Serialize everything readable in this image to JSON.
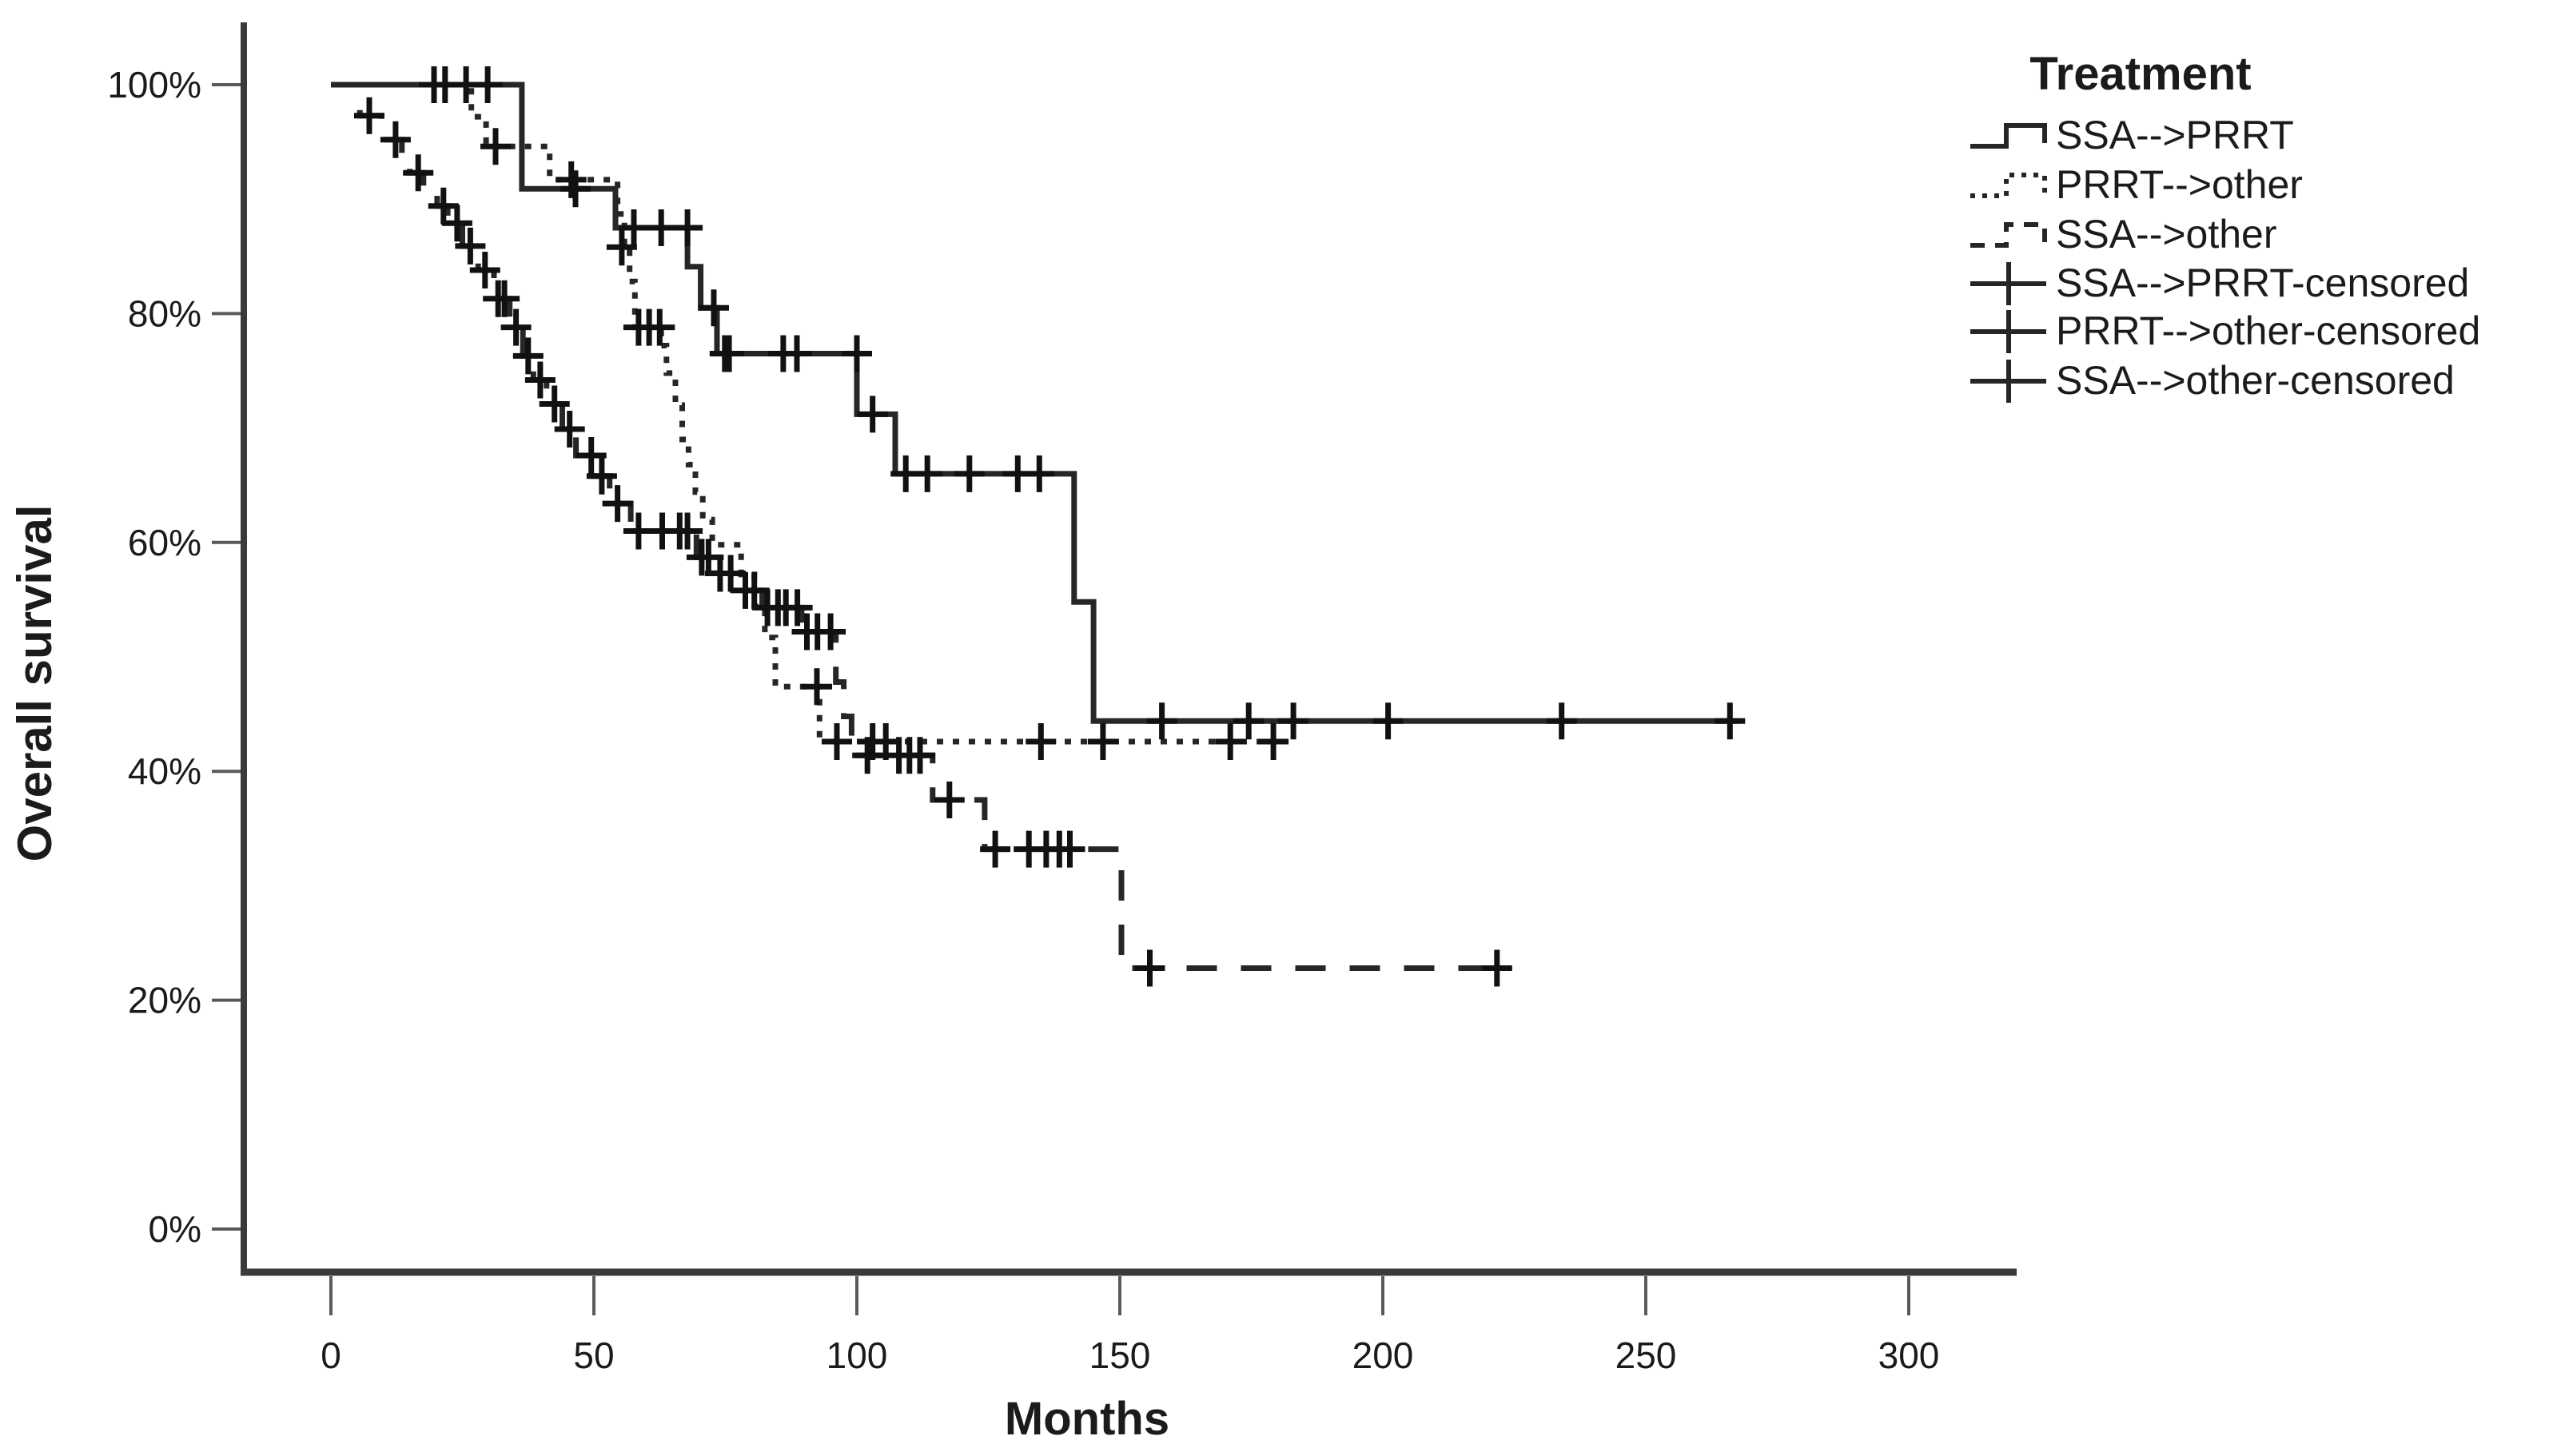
{
  "chart_data": {
    "type": "line",
    "variant": "kaplan-meier-step",
    "title": "",
    "xlabel": "Months",
    "ylabel": "Overall survival",
    "xlim": [
      0,
      300
    ],
    "ylim": [
      0,
      100
    ],
    "xtick_values": [
      0,
      50,
      100,
      150,
      200,
      250,
      300
    ],
    "xtick_labels": [
      "0",
      "50",
      "100",
      "150",
      "200",
      "250",
      "300"
    ],
    "ytick_values": [
      100,
      80,
      60,
      40,
      20,
      0
    ],
    "ytick_labels": [
      "100%",
      "80%",
      "60%",
      "40%",
      "20%",
      "0%"
    ],
    "grid": false,
    "legend_position": "top-right",
    "colors": {
      "line": "#262626",
      "censor": "#111111",
      "axis": "#3a3a3a",
      "tick": "#5a5a5a",
      "text": "#1b1b1b",
      "background": "#ffffff"
    },
    "legend": {
      "title": "Treatment",
      "entries": [
        {
          "label": "SSA-->PRRT",
          "style": "step-solid"
        },
        {
          "label": "PRRT-->other",
          "style": "step-dotted"
        },
        {
          "label": "SSA-->other",
          "style": "step-dashed"
        },
        {
          "label": "SSA-->PRRT-censored",
          "style": "censor-line"
        },
        {
          "label": "PRRT-->other-censored",
          "style": "censor-line"
        },
        {
          "label": "SSA-->other-censored",
          "style": "censor-line"
        }
      ]
    },
    "series": [
      {
        "name": "SSA-->PRRT",
        "line_style": "solid",
        "start": [
          0,
          100
        ],
        "steps": [
          [
            36.3,
            90.9
          ],
          [
            54.1,
            87.5
          ],
          [
            67.8,
            84.1
          ],
          [
            70.3,
            80.5
          ],
          [
            73.4,
            76.5
          ],
          [
            100,
            71.2
          ],
          [
            107.3,
            66.0
          ],
          [
            141.3,
            54.8
          ],
          [
            145,
            44.4
          ]
        ],
        "end": 267.5,
        "censors": [
          [
            19.6,
            100
          ],
          [
            21.7,
            100
          ],
          [
            25.7,
            100
          ],
          [
            29.8,
            100
          ],
          [
            46.5,
            90.9
          ],
          [
            57.6,
            87.5
          ],
          [
            62.8,
            87.5
          ],
          [
            67.8,
            87.5
          ],
          [
            72.8,
            80.5
          ],
          [
            74.9,
            76.5
          ],
          [
            75.7,
            76.5
          ],
          [
            86,
            76.5
          ],
          [
            88.6,
            76.5
          ],
          [
            100,
            76.5
          ],
          [
            103,
            71.2
          ],
          [
            109.3,
            66
          ],
          [
            113.4,
            66
          ],
          [
            121.4,
            66
          ],
          [
            130.6,
            66
          ],
          [
            134.7,
            66
          ],
          [
            158,
            44.4
          ],
          [
            174.5,
            44.4
          ],
          [
            183,
            44.4
          ],
          [
            201,
            44.4
          ],
          [
            234,
            44.4
          ],
          [
            266,
            44.4
          ]
        ]
      },
      {
        "name": "PRRT-->other",
        "line_style": "dotted",
        "start": [
          0,
          100
        ],
        "steps": [
          [
            26.7,
            97.2
          ],
          [
            29.5,
            94.6
          ],
          [
            41.6,
            91.7
          ],
          [
            54.5,
            88.7
          ],
          [
            55.8,
            85.8
          ],
          [
            56.8,
            82.8
          ],
          [
            57.8,
            78.8
          ],
          [
            62.8,
            77.2
          ],
          [
            63.8,
            74.8
          ],
          [
            65.5,
            72
          ],
          [
            66.8,
            69
          ],
          [
            68,
            66.8
          ],
          [
            69.3,
            64.4
          ],
          [
            70.7,
            62
          ],
          [
            72.5,
            59.8
          ],
          [
            78,
            57.2
          ],
          [
            80.5,
            54.4
          ],
          [
            82.5,
            51.7
          ],
          [
            84.5,
            47.4
          ],
          [
            92.9,
            42.6
          ]
        ],
        "end": 179.8,
        "censors": [
          [
            31.3,
            94.6
          ],
          [
            45.7,
            91.7
          ],
          [
            55.3,
            85.8
          ],
          [
            58.5,
            78.8
          ],
          [
            60.5,
            78.8
          ],
          [
            62.5,
            78.8
          ],
          [
            92.4,
            47.4
          ],
          [
            96.2,
            42.6
          ],
          [
            103,
            42.6
          ],
          [
            105.5,
            42.6
          ],
          [
            135,
            42.6
          ],
          [
            146.8,
            42.6
          ],
          [
            171,
            42.6
          ],
          [
            179.2,
            42.6
          ]
        ]
      },
      {
        "name": "SSA-->other",
        "line_style": "dashed",
        "start": [
          0,
          100
        ],
        "steps": [
          [
            5.5,
            97.3
          ],
          [
            9.6,
            95.2
          ],
          [
            13.5,
            93.8
          ],
          [
            15,
            92.3
          ],
          [
            17.6,
            90.9
          ],
          [
            20.2,
            89.4
          ],
          [
            22.2,
            87.9
          ],
          [
            25,
            85.9
          ],
          [
            28,
            83.8
          ],
          [
            31,
            81.3
          ],
          [
            34,
            78.8
          ],
          [
            36.5,
            76.3
          ],
          [
            38.5,
            74.2
          ],
          [
            41,
            72.1
          ],
          [
            44,
            69.9
          ],
          [
            46.6,
            67.6
          ],
          [
            50,
            65.8
          ],
          [
            53,
            63.4
          ],
          [
            57,
            61
          ],
          [
            69.5,
            58.7
          ],
          [
            73,
            57.3
          ],
          [
            78,
            55.8
          ],
          [
            82,
            54.3
          ],
          [
            89.5,
            52.2
          ],
          [
            96,
            47.8
          ],
          [
            97.5,
            44.8
          ],
          [
            99,
            41.4
          ],
          [
            114.4,
            37.5
          ],
          [
            124.3,
            33.2
          ],
          [
            150.3,
            22.8
          ]
        ],
        "end": 221.7,
        "censors": [
          [
            7.3,
            97.3
          ],
          [
            12.3,
            95.2
          ],
          [
            16.6,
            92.3
          ],
          [
            21.4,
            89.4
          ],
          [
            24,
            87.9
          ],
          [
            26.5,
            85.9
          ],
          [
            29.3,
            83.8
          ],
          [
            31.8,
            81.3
          ],
          [
            33,
            81.3
          ],
          [
            35.2,
            78.8
          ],
          [
            37.5,
            76.3
          ],
          [
            39.8,
            74.2
          ],
          [
            42.5,
            72.1
          ],
          [
            45.4,
            69.9
          ],
          [
            49.5,
            67.6
          ],
          [
            51.5,
            65.8
          ],
          [
            54.5,
            63.4
          ],
          [
            58.5,
            61
          ],
          [
            63,
            61
          ],
          [
            66.3,
            61
          ],
          [
            67.8,
            61
          ],
          [
            70.5,
            58.7
          ],
          [
            71.8,
            58.7
          ],
          [
            74,
            57.3
          ],
          [
            76,
            57.3
          ],
          [
            78.8,
            55.8
          ],
          [
            80.5,
            55.8
          ],
          [
            83,
            54.3
          ],
          [
            85,
            54.3
          ],
          [
            86.5,
            54.3
          ],
          [
            88.7,
            54.3
          ],
          [
            90.5,
            52.2
          ],
          [
            92.5,
            52.2
          ],
          [
            95,
            52.2
          ],
          [
            102,
            41.4
          ],
          [
            108,
            41.4
          ],
          [
            110,
            41.4
          ],
          [
            112,
            41.4
          ],
          [
            117.6,
            37.5
          ],
          [
            126.3,
            33.2
          ],
          [
            132.7,
            33.2
          ],
          [
            136,
            33.2
          ],
          [
            138.5,
            33.2
          ],
          [
            140.5,
            33.2
          ],
          [
            155.7,
            22.8
          ],
          [
            221.7,
            22.8
          ]
        ]
      }
    ]
  }
}
